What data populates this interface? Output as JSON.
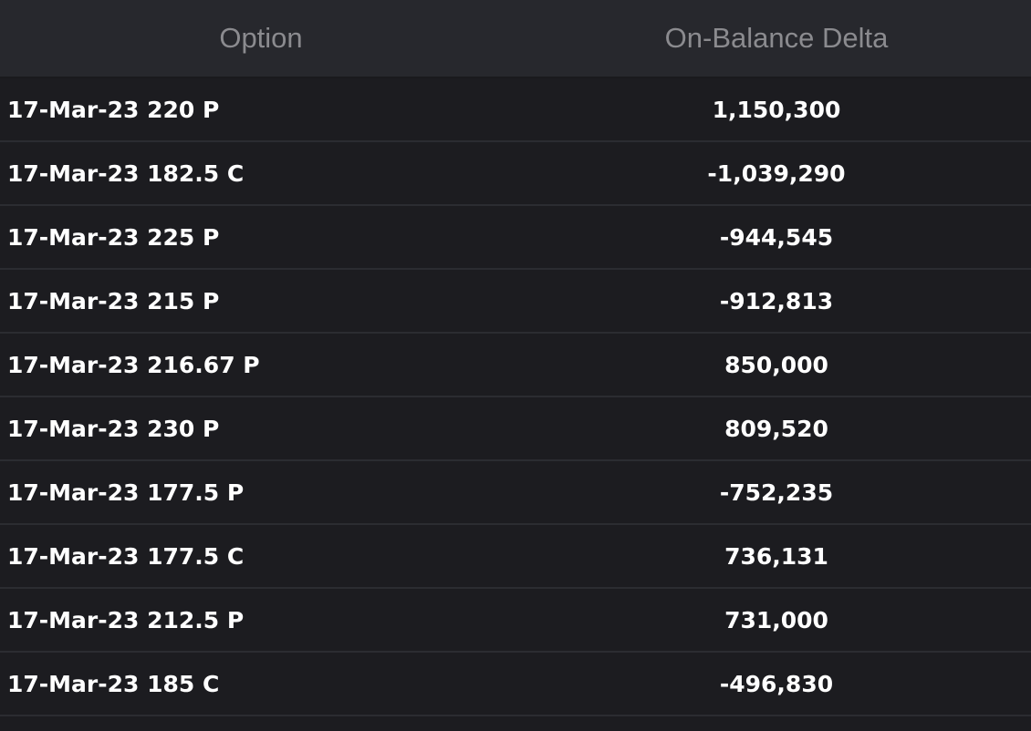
{
  "table": {
    "columns": {
      "option": "Option",
      "delta": "On-Balance Delta"
    },
    "rows": [
      {
        "option": "17-Mar-23 220 P",
        "delta": "1,150,300"
      },
      {
        "option": "17-Mar-23 182.5 C",
        "delta": "-1,039,290"
      },
      {
        "option": "17-Mar-23 225 P",
        "delta": "-944,545"
      },
      {
        "option": "17-Mar-23 215 P",
        "delta": "-912,813"
      },
      {
        "option": "17-Mar-23 216.67 P",
        "delta": "850,000"
      },
      {
        "option": "17-Mar-23 230 P",
        "delta": "809,520"
      },
      {
        "option": "17-Mar-23 177.5 P",
        "delta": "-752,235"
      },
      {
        "option": "17-Mar-23 177.5 C",
        "delta": "736,131"
      },
      {
        "option": "17-Mar-23 212.5 P",
        "delta": "731,000"
      },
      {
        "option": "17-Mar-23 185 C",
        "delta": "-496,830"
      }
    ]
  }
}
